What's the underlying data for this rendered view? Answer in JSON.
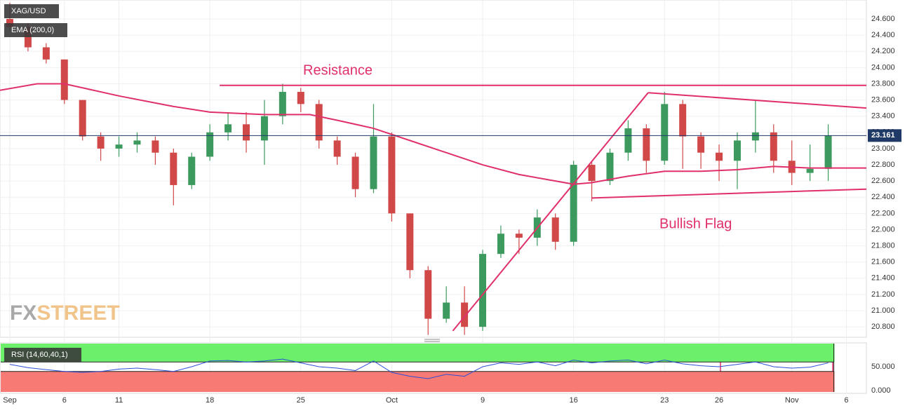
{
  "chart_data": [
    {
      "type": "candlestick",
      "symbol": "XAG/USD",
      "x": [
        0,
        1,
        2,
        3,
        4,
        5,
        6,
        7,
        8,
        9,
        10,
        11,
        12,
        13,
        14,
        15,
        16,
        17,
        18,
        19,
        20,
        21,
        22,
        23,
        24,
        25,
        26,
        27,
        28,
        29,
        30,
        31,
        32,
        33,
        34,
        35,
        36,
        37,
        38,
        39,
        40,
        41,
        42,
        43,
        44,
        45
      ],
      "open": [
        24.6,
        24.5,
        24.25,
        24.1,
        23.6,
        23.15,
        23.0,
        23.05,
        23.1,
        22.95,
        22.55,
        22.9,
        23.2,
        23.3,
        23.1,
        23.4,
        23.7,
        23.55,
        23.1,
        22.9,
        22.5,
        23.15,
        22.2,
        21.5,
        20.9,
        21.1,
        20.8,
        21.7,
        21.95,
        21.9,
        22.15,
        21.85,
        22.8,
        22.6,
        22.95,
        23.25,
        22.85,
        23.55,
        23.15,
        22.95,
        22.85,
        23.1,
        23.2,
        22.85,
        22.7,
        22.75
      ],
      "high": [
        24.8,
        24.55,
        24.3,
        24.1,
        23.6,
        23.2,
        23.15,
        23.2,
        23.15,
        23.0,
        22.95,
        23.3,
        23.45,
        23.45,
        23.6,
        23.8,
        23.75,
        23.6,
        23.15,
        22.95,
        23.55,
        23.2,
        22.2,
        21.55,
        21.3,
        21.3,
        21.75,
        22.05,
        22.0,
        22.25,
        22.2,
        22.85,
        22.85,
        23.0,
        23.35,
        23.3,
        23.7,
        23.6,
        23.2,
        23.05,
        23.2,
        23.6,
        23.3,
        23.1,
        23.05,
        23.3
      ],
      "low": [
        24.45,
        24.2,
        24.05,
        23.55,
        23.1,
        22.85,
        22.9,
        22.95,
        22.8,
        22.3,
        22.5,
        22.85,
        23.1,
        22.95,
        22.8,
        23.3,
        23.45,
        23.0,
        22.8,
        22.4,
        22.45,
        22.1,
        21.4,
        20.7,
        20.85,
        20.7,
        20.75,
        21.65,
        21.7,
        21.8,
        21.75,
        21.8,
        22.35,
        22.55,
        22.85,
        22.7,
        22.8,
        22.75,
        22.75,
        22.6,
        22.5,
        22.95,
        22.7,
        22.55,
        22.6,
        22.6
      ],
      "close": [
        24.5,
        24.25,
        24.1,
        23.6,
        23.15,
        23.0,
        23.05,
        23.1,
        22.95,
        22.55,
        22.9,
        23.2,
        23.3,
        23.1,
        23.4,
        23.7,
        23.55,
        23.1,
        22.9,
        22.5,
        23.15,
        22.2,
        21.5,
        20.9,
        21.1,
        20.8,
        21.7,
        21.95,
        21.9,
        22.15,
        21.85,
        22.8,
        22.6,
        22.95,
        23.25,
        22.85,
        23.55,
        23.15,
        22.95,
        22.85,
        23.1,
        23.2,
        22.85,
        22.7,
        22.75,
        23.161
      ],
      "up_color": "#3d9a5f",
      "down_color": "#d04848",
      "overlays": [
        {
          "name": "EMA (200,0)",
          "color": "#e0306a",
          "x": [
            -0.54,
            1.5,
            3,
            6,
            9,
            11,
            14,
            16.5,
            18,
            20,
            22,
            24,
            26,
            28,
            30,
            31,
            32,
            34,
            36,
            38,
            40,
            42,
            44,
            47.1
          ],
          "values": [
            23.72,
            23.8,
            23.8,
            23.65,
            23.52,
            23.45,
            23.42,
            23.42,
            23.35,
            23.25,
            23.1,
            22.95,
            22.8,
            22.68,
            22.6,
            22.56,
            22.58,
            22.66,
            22.72,
            22.72,
            22.74,
            22.78,
            22.76,
            22.76
          ]
        }
      ],
      "xlim": [
        -0.54,
        47.1
      ],
      "xticks": [
        {
          "value": 0,
          "label": "Sep"
        },
        {
          "value": 3,
          "label": "6"
        },
        {
          "value": 6,
          "label": "11"
        },
        {
          "value": 11,
          "label": "18"
        },
        {
          "value": 16,
          "label": "25"
        },
        {
          "value": 21,
          "label": "Oct"
        },
        {
          "value": 26,
          "label": "9"
        },
        {
          "value": 31,
          "label": "16"
        },
        {
          "value": 36,
          "label": "23"
        },
        {
          "value": 39,
          "label": "26"
        },
        {
          "value": 43,
          "label": "Nov"
        },
        {
          "value": 46,
          "label": "6"
        }
      ],
      "ylim": [
        20.68,
        24.834
      ],
      "yticks": [
        {
          "value": 24.6,
          "label": "24.600"
        },
        {
          "value": 24.4,
          "label": "24.400"
        },
        {
          "value": 24.2,
          "label": "24.200"
        },
        {
          "value": 24.0,
          "label": "24.000"
        },
        {
          "value": 23.8,
          "label": "23.800"
        },
        {
          "value": 23.6,
          "label": "23.600"
        },
        {
          "value": 23.4,
          "label": "23.400"
        },
        {
          "value": 23.2,
          "label": "23.200"
        },
        {
          "value": 23.0,
          "label": "23.000"
        },
        {
          "value": 22.8,
          "label": "22.800"
        },
        {
          "value": 22.6,
          "label": "22.600"
        },
        {
          "value": 22.4,
          "label": "22.400"
        },
        {
          "value": 22.2,
          "label": "22.200"
        },
        {
          "value": 22.0,
          "label": "22.000"
        },
        {
          "value": 21.8,
          "label": "21.800"
        },
        {
          "value": 21.6,
          "label": "21.600"
        },
        {
          "value": 21.4,
          "label": "21.400"
        },
        {
          "value": 21.2,
          "label": "21.200"
        },
        {
          "value": 21.0,
          "label": "21.000"
        },
        {
          "value": 20.8,
          "label": "20.800"
        }
      ],
      "last_price": {
        "value": 23.161,
        "label": "23.161"
      },
      "drawings": [
        {
          "label": "Resistance",
          "x": [
            11.54,
            47.1
          ],
          "y": [
            23.78,
            23.78
          ]
        },
        {
          "x": [
            24.36,
            35.1
          ],
          "y": [
            20.75,
            23.69
          ]
        },
        {
          "x": [
            35.1,
            47.1
          ],
          "y": [
            23.69,
            23.5
          ]
        },
        {
          "label": "Bullish Flag",
          "x": [
            32.0,
            47.1
          ],
          "y": [
            22.39,
            22.5
          ]
        }
      ],
      "drawing_color": "#e0306a",
      "watermark": [
        "FX",
        "STREET"
      ]
    },
    {
      "type": "line",
      "name": "RSI (14,60,40,1)",
      "color": "#2b4fd8",
      "x": [
        0,
        1,
        2,
        3,
        4,
        5,
        6,
        7,
        8,
        9,
        10,
        11,
        12,
        13,
        14,
        15,
        16,
        17,
        18,
        19,
        20,
        21,
        22,
        23,
        24,
        25,
        26,
        27,
        28,
        29,
        30,
        31,
        32,
        33,
        34,
        35,
        36,
        37,
        38,
        39,
        40,
        41,
        42,
        43,
        44,
        45
      ],
      "values": [
        55,
        48,
        44,
        40,
        38,
        40,
        45,
        47,
        44,
        40,
        50,
        62,
        63,
        60,
        62,
        66,
        58,
        50,
        47,
        42,
        62,
        38,
        30,
        25,
        34,
        30,
        50,
        58,
        55,
        60,
        52,
        64,
        58,
        62,
        64,
        56,
        64,
        56,
        52,
        50,
        55,
        60,
        50,
        47,
        49,
        58
      ],
      "upper": 60,
      "lower": 40,
      "ylim": [
        -4.4,
        98.5
      ],
      "yticks": [
        {
          "value": 50,
          "label": "50.000"
        },
        {
          "value": 0,
          "label": "0.000"
        }
      ]
    }
  ]
}
